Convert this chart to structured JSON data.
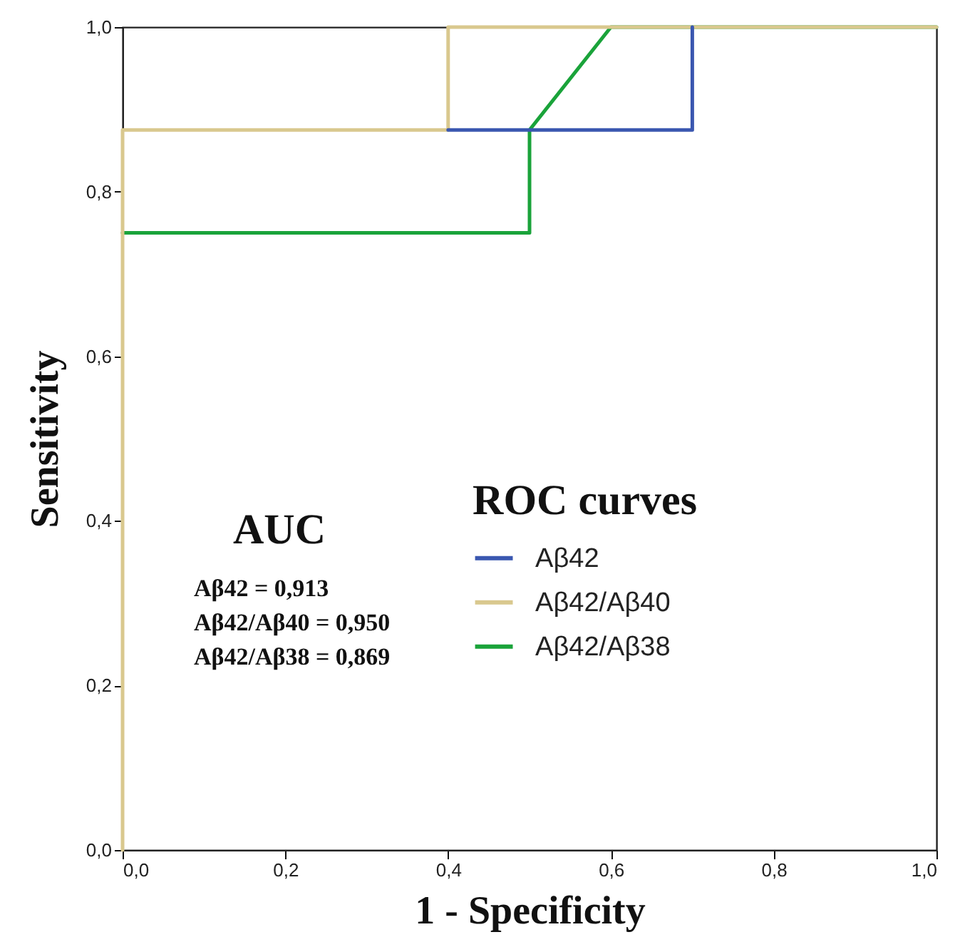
{
  "chart_data": {
    "type": "line",
    "xlabel": "1 - Specificity",
    "ylabel": "Sensitivity",
    "legend_title": "ROC curves",
    "legend": "bottom",
    "annotations": [
      "AUC",
      "Aβ42 = 0,913",
      "Aβ42/Aβ40 = 0,950",
      "Aβ42/Aβ38 = 0,869"
    ],
    "xlim": [
      0,
      1
    ],
    "ylim": [
      0,
      1
    ],
    "xticks": [
      {
        "value": 0,
        "label": "0,0"
      },
      {
        "value": 0.2,
        "label": "0,2"
      },
      {
        "value": 0.4,
        "label": "0,4"
      },
      {
        "value": 0.6,
        "label": "0,6"
      },
      {
        "value": 0.8,
        "label": "0,8"
      },
      {
        "value": 1,
        "label": "1,0"
      }
    ],
    "yticks": [
      {
        "value": 0,
        "label": "0,0"
      },
      {
        "value": 0.2,
        "label": "0,2"
      },
      {
        "value": 0.4,
        "label": "0,4"
      },
      {
        "value": 0.6,
        "label": "0,6"
      },
      {
        "value": 0.8,
        "label": "0,8"
      },
      {
        "value": 1,
        "label": "1,0"
      }
    ],
    "grid": false,
    "marker": "none",
    "line_style": "solid",
    "series": [
      {
        "name": "Aβ42",
        "color": "#3a57b0",
        "x": [
          0.4,
          0.7,
          0.7
        ],
        "values": [
          0.875,
          0.875,
          1
        ]
      },
      {
        "name": "Aβ42/Aβ40",
        "color": "#d9c88e",
        "x": [
          0,
          0,
          0.4,
          0.4,
          1
        ],
        "values": [
          0,
          0.875,
          0.875,
          1,
          1
        ]
      },
      {
        "name": "Aβ42/Aβ38",
        "color": "#1aa33a",
        "x": [
          0,
          0.5,
          0.5,
          0.6,
          1
        ],
        "values": [
          0.75,
          0.75,
          0.875,
          1,
          1
        ]
      }
    ]
  }
}
